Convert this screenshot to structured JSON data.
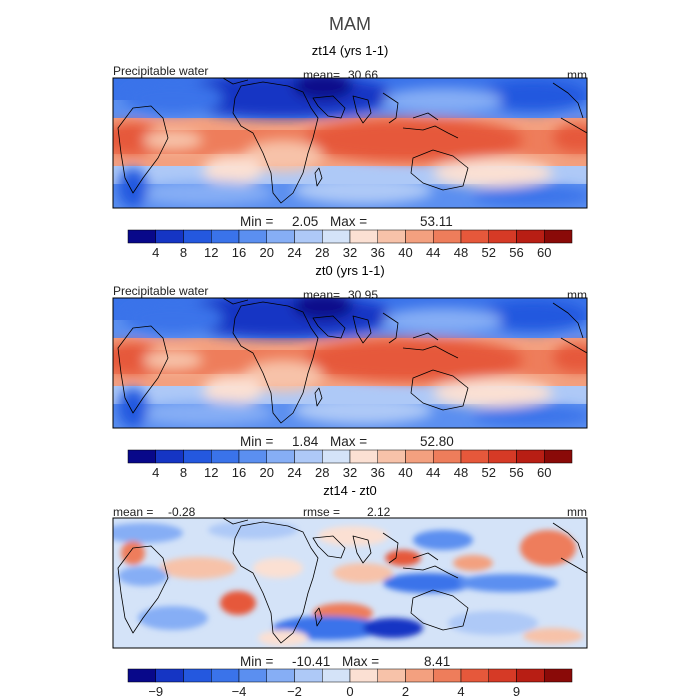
{
  "figure": {
    "title": "MAM"
  },
  "land_color": "#000000",
  "panels": [
    {
      "id": "zt14",
      "title": "zt14 (yrs 1-1)",
      "variable_label": "Precipitable water",
      "mean_label": "mean=",
      "mean_value": "30.66",
      "units": "mm",
      "min_label": "Min =",
      "min_value": "2.05",
      "max_label": "Max =",
      "max_value": "53.11",
      "colorbar": {
        "colors": [
          "#08088a",
          "#1535c4",
          "#2458df",
          "#3a73ea",
          "#5b8ff0",
          "#86aef5",
          "#aec9f7",
          "#d4e3f8",
          "#fbe0d3",
          "#f7c2a9",
          "#f3a07f",
          "#ee7d5b",
          "#e6583b",
          "#d63a26",
          "#b81e14",
          "#8a0a08"
        ],
        "tick_labels": [
          "4",
          "8",
          "12",
          "16",
          "20",
          "24",
          "28",
          "32",
          "36",
          "40",
          "44",
          "48",
          "52",
          "56",
          "60"
        ]
      }
    },
    {
      "id": "zt0",
      "title": "zt0 (yrs 1-1)",
      "variable_label": "Precipitable water",
      "mean_label": "mean=",
      "mean_value": "30.95",
      "units": "mm",
      "min_label": "Min =",
      "min_value": "1.84",
      "max_label": "Max =",
      "max_value": "52.80",
      "colorbar": {
        "colors": [
          "#08088a",
          "#1535c4",
          "#2458df",
          "#3a73ea",
          "#5b8ff0",
          "#86aef5",
          "#aec9f7",
          "#d4e3f8",
          "#fbe0d3",
          "#f7c2a9",
          "#f3a07f",
          "#ee7d5b",
          "#e6583b",
          "#d63a26",
          "#b81e14",
          "#8a0a08"
        ],
        "tick_labels": [
          "4",
          "8",
          "12",
          "16",
          "20",
          "24",
          "28",
          "32",
          "36",
          "40",
          "44",
          "48",
          "52",
          "56",
          "60"
        ]
      }
    },
    {
      "id": "diff",
      "title": "zt14 - zt0",
      "mean_label": "mean =",
      "mean_value": "-0.28",
      "rmse_label": "rmse =",
      "rmse_value": "2.12",
      "units": "mm",
      "min_label": "Min =",
      "min_value": "-10.41",
      "max_label": "Max =",
      "max_value": "8.41",
      "colorbar": {
        "colors": [
          "#08088a",
          "#1535c4",
          "#2458df",
          "#3a73ea",
          "#5b8ff0",
          "#86aef5",
          "#aec9f7",
          "#d4e3f8",
          "#fbe0d3",
          "#f7c2a9",
          "#f3a07f",
          "#ee7d5b",
          "#e6583b",
          "#d63a26",
          "#b81e14",
          "#8a0a08"
        ],
        "tick_labels": [
          "−9",
          "−4",
          "−2",
          "0",
          "2",
          "4",
          "9"
        ]
      }
    }
  ]
}
